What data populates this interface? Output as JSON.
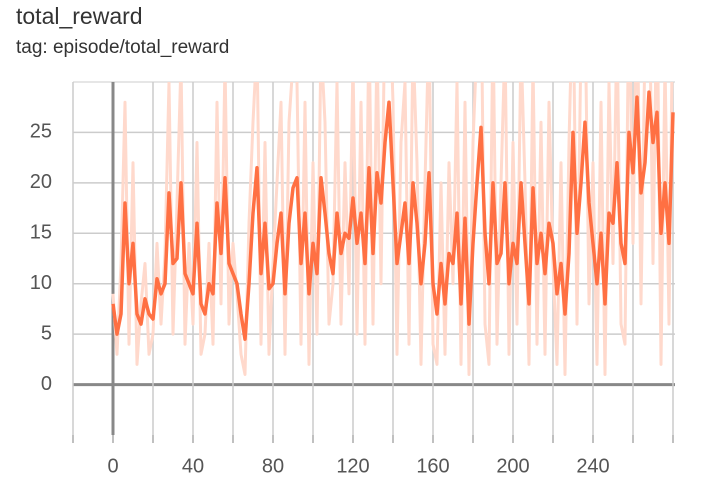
{
  "chart_data": {
    "type": "line",
    "title": "total_reward",
    "subtitle": "tag: episode/total_reward",
    "xlim": [
      -20,
      281
    ],
    "ylim": [
      -5,
      30
    ],
    "xticks": [
      0,
      40,
      80,
      120,
      160,
      200,
      240
    ],
    "x_minor_ticks": [
      -20,
      20,
      60,
      100,
      140,
      180,
      220,
      260,
      280
    ],
    "yticks": [
      0,
      5,
      10,
      15,
      20,
      25
    ],
    "grid": true,
    "x": [
      0,
      2,
      4,
      6,
      8,
      10,
      12,
      14,
      16,
      18,
      20,
      22,
      24,
      26,
      28,
      30,
      32,
      34,
      36,
      38,
      40,
      42,
      44,
      46,
      48,
      50,
      52,
      54,
      56,
      58,
      60,
      62,
      64,
      66,
      68,
      70,
      72,
      74,
      76,
      78,
      80,
      82,
      84,
      86,
      88,
      90,
      92,
      94,
      96,
      98,
      100,
      102,
      104,
      106,
      108,
      110,
      112,
      114,
      116,
      118,
      120,
      122,
      124,
      126,
      128,
      130,
      132,
      134,
      136,
      138,
      140,
      142,
      144,
      146,
      148,
      150,
      152,
      154,
      156,
      158,
      160,
      162,
      164,
      166,
      168,
      170,
      172,
      174,
      176,
      178,
      180,
      182,
      184,
      186,
      188,
      190,
      192,
      194,
      196,
      198,
      200,
      202,
      204,
      206,
      208,
      210,
      212,
      214,
      216,
      218,
      220,
      222,
      224,
      226,
      228,
      230,
      232,
      234,
      236,
      238,
      240,
      242,
      244,
      246,
      248,
      250,
      252,
      254,
      256,
      258,
      260,
      262,
      264,
      266,
      268,
      270,
      272,
      274,
      276,
      278,
      280
    ],
    "series": [
      {
        "color": "#ffd9cc",
        "values": [
          9,
          3,
          12,
          28,
          4,
          22,
          2,
          8,
          12,
          3,
          5,
          14,
          6,
          13,
          30,
          5,
          18,
          32,
          4,
          14,
          6,
          24,
          3,
          5,
          14,
          4,
          28,
          8,
          32,
          6,
          14,
          9,
          3,
          1,
          16,
          26,
          34,
          4,
          24,
          3,
          12,
          20,
          28,
          3,
          26,
          32,
          30,
          4,
          28,
          2,
          22,
          5,
          34,
          26,
          6,
          10,
          30,
          6,
          22,
          9,
          32,
          5,
          28,
          4,
          36,
          6,
          34,
          10,
          38,
          40,
          28,
          3,
          24,
          30,
          4,
          34,
          22,
          2,
          20,
          36,
          4,
          2,
          20,
          3,
          22,
          10,
          30,
          2,
          28,
          1,
          24,
          34,
          40,
          6,
          2,
          36,
          4,
          20,
          34,
          3,
          24,
          6,
          34,
          20,
          2,
          32,
          4,
          26,
          3,
          28,
          12,
          2,
          22,
          1,
          24,
          40,
          6,
          34,
          38,
          8,
          22,
          2,
          28,
          1,
          30,
          12,
          36,
          6,
          4,
          40,
          14,
          40,
          8,
          34,
          42,
          12,
          40,
          2,
          32,
          6,
          40
        ]
      },
      {
        "color": "#ff7043",
        "values": [
          8,
          5,
          7,
          18,
          10,
          14,
          7,
          6,
          8.5,
          7,
          6.5,
          10.5,
          9,
          10,
          19,
          12,
          12.5,
          20,
          11,
          10,
          9,
          16,
          8,
          7,
          10,
          9,
          18,
          13,
          20.5,
          12,
          11,
          10,
          7,
          4.5,
          10,
          17,
          21.5,
          11,
          16,
          9.5,
          10,
          14,
          17,
          9,
          16,
          19.5,
          20.5,
          12,
          17,
          9,
          14,
          11,
          20.5,
          17,
          13,
          11,
          17,
          13,
          15,
          14.5,
          18.5,
          14,
          17,
          12,
          21.5,
          13,
          21,
          18,
          24,
          28,
          20,
          12,
          15,
          18,
          12,
          20,
          16,
          10,
          14,
          21,
          10,
          7,
          12,
          8,
          13,
          12,
          17,
          8,
          16.5,
          6,
          14,
          20,
          25.5,
          15,
          10,
          20,
          12,
          13,
          20,
          10,
          14,
          12,
          20,
          14,
          8,
          19.5,
          12,
          15,
          11,
          16,
          14,
          9,
          12,
          7,
          13,
          25,
          15,
          20,
          26,
          18,
          14,
          10,
          15,
          8,
          17,
          16,
          22,
          14,
          12,
          25,
          21,
          28.5,
          19,
          22,
          29,
          24,
          27,
          15,
          20,
          14,
          27
        ]
      }
    ]
  }
}
